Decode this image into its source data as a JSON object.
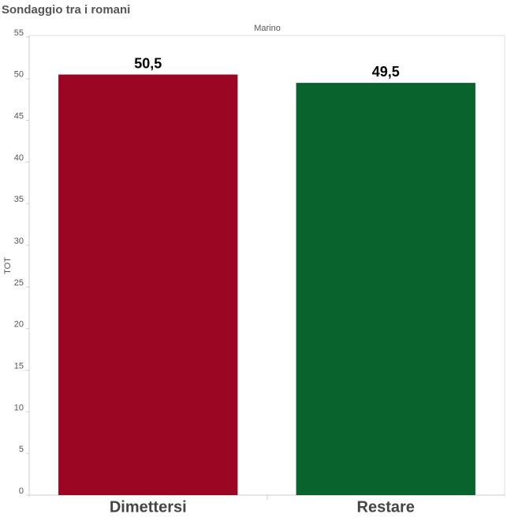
{
  "chart_data": {
    "type": "bar",
    "title": "Sondaggio tra i romani",
    "subtitle": "Marino",
    "y_label": "TOT",
    "categories": [
      "Dimettersi",
      "Restare"
    ],
    "values": [
      50.5,
      49.5
    ],
    "value_labels": [
      "50,5",
      "49,5"
    ],
    "colors": [
      "#9b0623",
      "#08642c"
    ],
    "ylim": [
      0,
      55
    ],
    "yticks": [
      0,
      5,
      10,
      15,
      20,
      25,
      30,
      35,
      40,
      45,
      50,
      55
    ],
    "grid": false
  }
}
